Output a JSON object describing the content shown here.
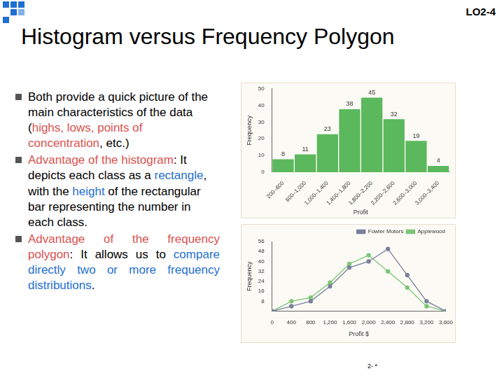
{
  "slide": {
    "tag": "LO2-4",
    "title": "Histogram versus Frequency Polygon",
    "bullets": [
      [
        {
          "text": "Both provide a quick picture of the main characteristics of the data ("
        },
        {
          "text": "highs, lows, points of concentration",
          "color": "#d9534f"
        },
        {
          "text": ", etc.)"
        }
      ],
      [
        {
          "text": "Advantage of the histogram",
          "color": "#d9534f"
        },
        {
          "text": ": It depicts each class as a "
        },
        {
          "text": "rectangle",
          "color": "#1f6fd1"
        },
        {
          "text": ", with the "
        },
        {
          "text": "height",
          "color": "#1f6fd1"
        },
        {
          "text": " of the rectangular bar representing the number in each class."
        }
      ],
      [
        {
          "text": "Advantage of the frequency polygon",
          "color": "#d9534f"
        },
        {
          "text": ": It allows us to "
        },
        {
          "text": "compare directly two or more frequency distributions",
          "color": "#1f6fd1"
        },
        {
          "text": "."
        }
      ]
    ],
    "footer": "2- *"
  },
  "chart_data": [
    {
      "type": "histogram",
      "x_label": "Profit",
      "y_label": "Frequency",
      "categories": [
        "200–600",
        "600–1,000",
        "1,000–1,400",
        "1,400–1,800",
        "1,800–2,200",
        "2,200–2,600",
        "2,600–3,000",
        "3,000–3,400"
      ],
      "values": [
        8,
        11,
        23,
        38,
        45,
        32,
        19,
        4
      ],
      "color": "#5cb85c",
      "ylim": [
        0,
        50
      ],
      "yticks": [
        0,
        10,
        20,
        30,
        40,
        50
      ],
      "grid": false,
      "data_labels": true
    },
    {
      "type": "line",
      "x_label": "Profit $",
      "y_label": "Frequency",
      "x": [
        0,
        400,
        800,
        1200,
        1600,
        2000,
        2400,
        2800,
        3200,
        3600
      ],
      "series": [
        {
          "name": "Fowler Motors",
          "color": "#7a7f9a",
          "marker": "circle",
          "values": [
            0,
            4,
            8,
            20,
            35,
            40,
            50,
            29,
            8,
            0
          ]
        },
        {
          "name": "Applewood",
          "color": "#7cc576",
          "marker": "circle",
          "values": [
            0,
            8,
            11,
            23,
            38,
            45,
            32,
            19,
            4,
            0
          ]
        }
      ],
      "xlim": [
        0,
        3600
      ],
      "xticks": [
        0,
        400,
        800,
        {
          "value": 1200,
          "label": "1,200"
        },
        {
          "value": 1600,
          "label": "1,600"
        },
        {
          "value": 2000,
          "label": "2,000"
        },
        {
          "value": 2400,
          "label": "2,400"
        },
        {
          "value": 2800,
          "label": "2,800"
        },
        {
          "value": 3200,
          "label": "3,200"
        },
        {
          "value": 3600,
          "label": "3,600"
        }
      ],
      "ylim": [
        0,
        56
      ],
      "yticks": [
        8,
        16,
        24,
        32,
        40,
        48,
        56
      ],
      "grid": false,
      "legend": "upper right"
    }
  ]
}
